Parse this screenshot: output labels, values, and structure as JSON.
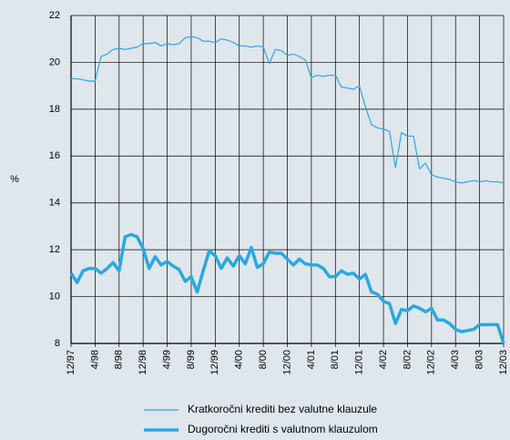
{
  "chart_data": {
    "type": "line",
    "ylabel": "%",
    "categories": [
      "12/97",
      null,
      null,
      null,
      "4/98",
      null,
      null,
      null,
      "8/98",
      null,
      null,
      null,
      "12/98",
      null,
      null,
      null,
      "4/99",
      null,
      null,
      null,
      "8/99",
      null,
      null,
      null,
      "12/99",
      null,
      null,
      null,
      "4/00",
      null,
      null,
      null,
      "8/00",
      null,
      null,
      null,
      "12/00",
      null,
      null,
      null,
      "4/01",
      null,
      null,
      null,
      "8/01",
      null,
      null,
      null,
      "12/01",
      null,
      null,
      null,
      "4/02",
      null,
      null,
      null,
      "8/02",
      null,
      null,
      null,
      "12/02",
      null,
      null,
      null,
      "4/03",
      null,
      null,
      null,
      "8/03",
      null,
      null,
      null,
      "12/03"
    ],
    "series": [
      {
        "name": "Kratkoročni krediti bez valutne klauzule",
        "color": "#29a8e0",
        "width": 1.2,
        "values": [
          19.3,
          19.3,
          19.25,
          19.2,
          19.2,
          20.25,
          20.35,
          20.55,
          20.6,
          20.55,
          20.6,
          20.65,
          20.8,
          20.8,
          20.85,
          20.7,
          20.8,
          20.75,
          20.8,
          21.05,
          21.1,
          21.05,
          20.9,
          20.9,
          20.85,
          21.0,
          20.95,
          20.85,
          20.7,
          20.7,
          20.65,
          20.7,
          20.65,
          19.95,
          20.55,
          20.5,
          20.3,
          20.35,
          20.25,
          20.1,
          19.35,
          19.45,
          19.4,
          19.45,
          19.45,
          18.95,
          18.9,
          18.85,
          19.0,
          18.1,
          17.35,
          17.2,
          17.15,
          17.05,
          15.5,
          17.0,
          16.85,
          16.85,
          15.45,
          15.7,
          15.2,
          15.1,
          15.05,
          15.0,
          14.9,
          14.85,
          14.9,
          14.95,
          14.9,
          14.95,
          14.9,
          14.9,
          14.85
        ]
      },
      {
        "name": "Dugoročni krediti s valutnom klauzulom",
        "color": "#29a8e0",
        "width": 3.5,
        "values": [
          11.0,
          10.6,
          11.1,
          11.2,
          11.2,
          11.0,
          11.2,
          11.45,
          11.1,
          12.55,
          12.65,
          12.55,
          12.05,
          11.2,
          11.7,
          11.35,
          11.5,
          11.3,
          11.15,
          10.65,
          10.85,
          10.2,
          11.1,
          11.95,
          11.75,
          11.2,
          11.65,
          11.3,
          11.75,
          11.4,
          12.1,
          11.25,
          11.4,
          11.9,
          11.85,
          11.85,
          11.6,
          11.35,
          11.6,
          11.4,
          11.35,
          11.35,
          11.2,
          10.85,
          10.85,
          11.1,
          10.95,
          11.0,
          10.75,
          10.95,
          10.2,
          10.1,
          9.8,
          9.7,
          8.85,
          9.45,
          9.4,
          9.6,
          9.5,
          9.35,
          9.5,
          9.0,
          9.0,
          8.85,
          8.6,
          8.5,
          8.55,
          8.6,
          8.8,
          8.8,
          8.8,
          8.8,
          8.0
        ]
      }
    ],
    "ylim": [
      8,
      22
    ],
    "yticks": [
      8,
      10,
      12,
      14,
      16,
      18,
      20,
      22
    ],
    "grid": true
  }
}
